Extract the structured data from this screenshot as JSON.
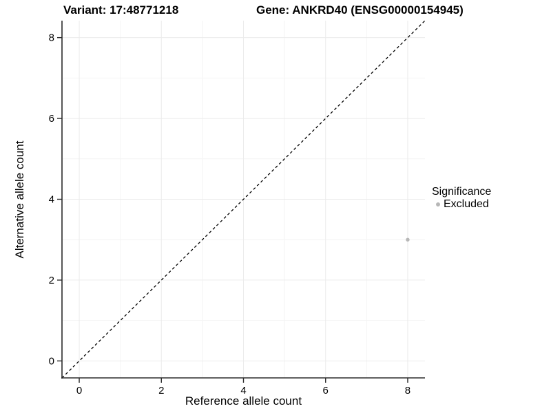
{
  "chart_data": {
    "type": "scatter",
    "title_left": "Variant: 17:48771218",
    "title_right": "Gene: ANKRD40 (ENSG00000154945)",
    "xlabel": "Reference allele count",
    "ylabel": "Alternative allele count",
    "xlim": [
      -0.42,
      8.42
    ],
    "ylim": [
      -0.42,
      8.42
    ],
    "x_major_ticks": [
      0,
      2,
      4,
      6,
      8
    ],
    "y_major_ticks": [
      0,
      2,
      4,
      6,
      8
    ],
    "x_minor_ticks": [
      1,
      3,
      5,
      7
    ],
    "y_minor_ticks": [
      1,
      3,
      5,
      7
    ],
    "grid": {
      "major_color": "#ebebeb",
      "minor_color": "#f4f4f4",
      "on": true
    },
    "reference_line": {
      "slope": 1,
      "intercept": 0,
      "style": "dashed",
      "color": "#000000"
    },
    "series": [
      {
        "name": "Excluded",
        "color": "#b7b7b7",
        "points": [
          {
            "x": 8,
            "y": 3
          }
        ]
      }
    ],
    "legend": {
      "title": "Significance",
      "position": "right",
      "items": [
        {
          "label": "Excluded",
          "color": "#b7b7b7"
        }
      ]
    },
    "axis_color": "#2a2a2a",
    "tick_label_color": "#000000",
    "tick_label_size": 15
  }
}
